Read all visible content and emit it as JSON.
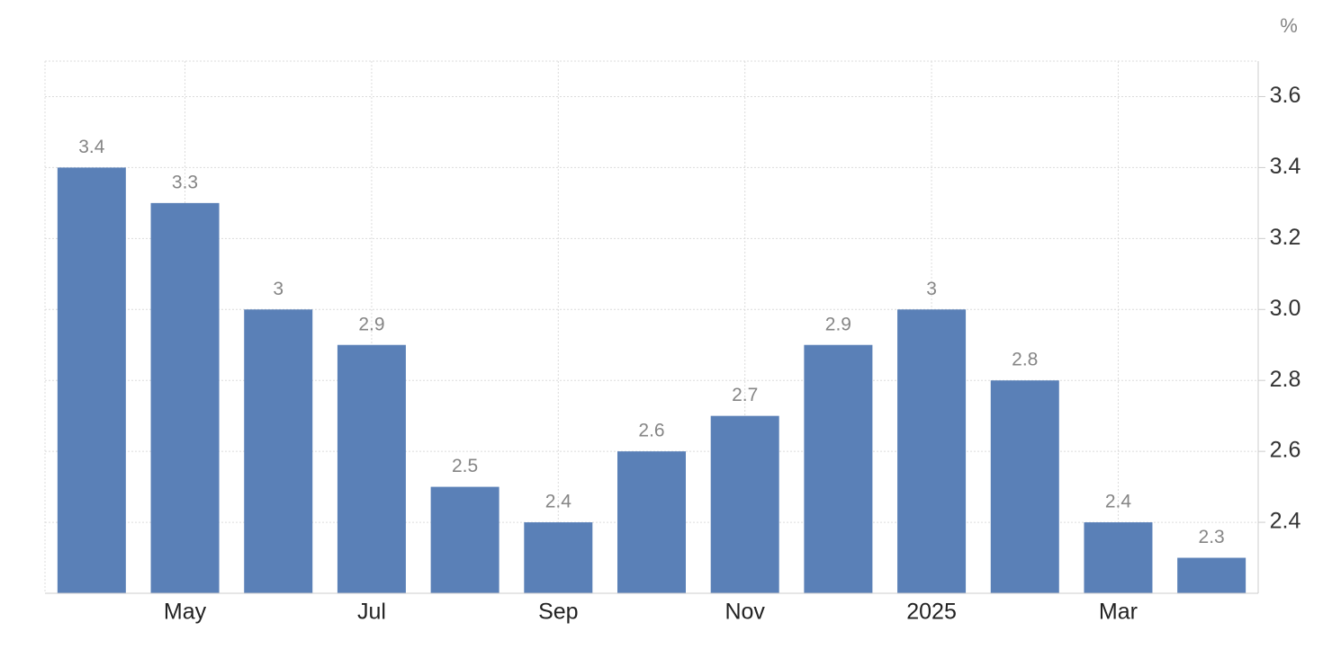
{
  "chart_data": {
    "type": "bar",
    "unit": "%",
    "categories": [
      null,
      "May",
      null,
      "Jul",
      null,
      "Sep",
      null,
      "Nov",
      null,
      "2025",
      null,
      "Mar",
      null
    ],
    "values": [
      3.4,
      3.3,
      3,
      2.9,
      2.5,
      2.4,
      2.6,
      2.7,
      2.9,
      3,
      2.8,
      2.4,
      2.3
    ],
    "color": "#5a80b7",
    "ylim": [
      2.2,
      3.7
    ],
    "yticks": [
      2.4,
      2.6,
      2.8,
      {
        "value": 3,
        "label": "3.0"
      },
      3.2,
      3.4,
      3.6
    ],
    "grid": true
  }
}
